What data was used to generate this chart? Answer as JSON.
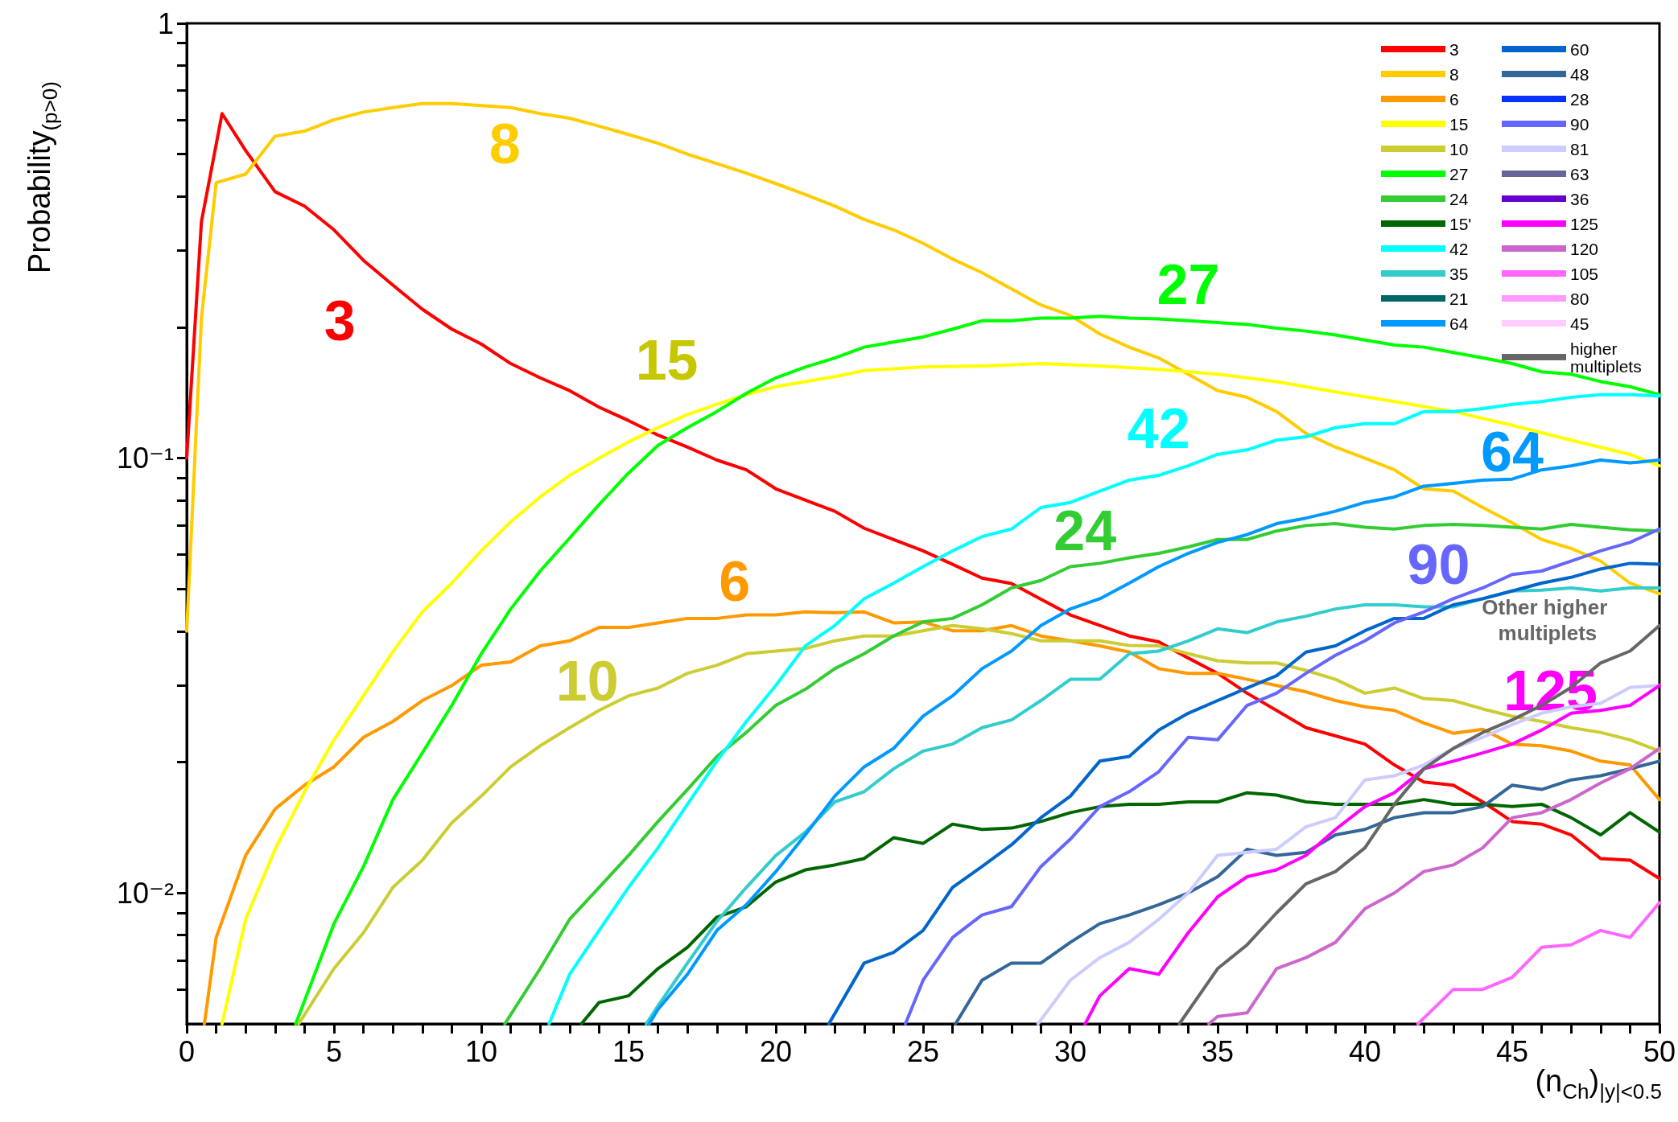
{
  "chart_data": {
    "type": "line",
    "ylabel": "Probability$_{(p>0)}$",
    "xlabel": "(n$_{Ch}$)$_{|y|<0.5}$",
    "log": "y",
    "legend": "top right",
    "line_style": "solid",
    "marker": "none",
    "xlim": [
      0,
      50
    ],
    "ylim": [
      0.005,
      1
    ],
    "xticks": [
      0,
      {
        "value": 1,
        "label": null
      },
      {
        "value": 2,
        "label": null
      },
      {
        "value": 3,
        "label": null
      },
      {
        "value": 4,
        "label": null
      },
      5,
      {
        "value": 6,
        "label": null
      },
      {
        "value": 7,
        "label": null
      },
      {
        "value": 8,
        "label": null
      },
      {
        "value": 9,
        "label": null
      },
      10,
      {
        "value": 11,
        "label": null
      },
      {
        "value": 12,
        "label": null
      },
      {
        "value": 13,
        "label": null
      },
      {
        "value": 14,
        "label": null
      },
      15,
      {
        "value": 16,
        "label": null
      },
      {
        "value": 17,
        "label": null
      },
      {
        "value": 18,
        "label": null
      },
      {
        "value": 19,
        "label": null
      },
      20,
      {
        "value": 21,
        "label": null
      },
      {
        "value": 22,
        "label": null
      },
      {
        "value": 23,
        "label": null
      },
      {
        "value": 24,
        "label": null
      },
      25,
      {
        "value": 26,
        "label": null
      },
      {
        "value": 27,
        "label": null
      },
      {
        "value": 28,
        "label": null
      },
      {
        "value": 29,
        "label": null
      },
      30,
      {
        "value": 31,
        "label": null
      },
      {
        "value": 32,
        "label": null
      },
      {
        "value": 33,
        "label": null
      },
      {
        "value": 34,
        "label": null
      },
      35,
      {
        "value": 36,
        "label": null
      },
      {
        "value": 37,
        "label": null
      },
      {
        "value": 38,
        "label": null
      },
      {
        "value": 39,
        "label": null
      },
      40,
      {
        "value": 41,
        "label": null
      },
      {
        "value": 42,
        "label": null
      },
      {
        "value": 43,
        "label": null
      },
      {
        "value": 44,
        "label": null
      },
      45,
      {
        "value": 46,
        "label": null
      },
      {
        "value": 47,
        "label": null
      },
      {
        "value": 48,
        "label": null
      },
      {
        "value": 49,
        "label": null
      },
      50
    ],
    "yticks": [
      {
        "value": 0.006,
        "label": null
      },
      {
        "value": 0.007,
        "label": null
      },
      {
        "value": 0.008,
        "label": null
      },
      {
        "value": 0.009,
        "label": null
      },
      {
        "value": 0.01,
        "label": "10⁻²"
      },
      {
        "value": 0.02,
        "label": null
      },
      {
        "value": 0.03,
        "label": null
      },
      {
        "value": 0.04,
        "label": null
      },
      {
        "value": 0.05,
        "label": null
      },
      {
        "value": 0.06,
        "label": null
      },
      {
        "value": 0.07,
        "label": null
      },
      {
        "value": 0.08,
        "label": null
      },
      {
        "value": 0.09,
        "label": null
      },
      {
        "value": 0.1,
        "label": "10⁻¹"
      },
      {
        "value": 0.2,
        "label": null
      },
      {
        "value": 0.3,
        "label": null
      },
      {
        "value": 0.4,
        "label": null
      },
      {
        "value": 0.5,
        "label": null
      },
      {
        "value": 0.6,
        "label": null
      },
      {
        "value": 0.7,
        "label": null
      },
      {
        "value": 0.8,
        "label": null
      },
      {
        "value": 0.9,
        "label": null
      },
      1
    ],
    "annotations": [
      "3",
      "8",
      "15",
      "27",
      "42",
      "64",
      "24",
      "6",
      "90",
      "10",
      "125",
      "Other higher multiplets"
    ],
    "series": [
      {
        "name": "3",
        "color": "#ff0000",
        "x": [
          0,
          0.5,
          1.2,
          2,
          3,
          4,
          5,
          6,
          7,
          8,
          9,
          10,
          11,
          12,
          13,
          14,
          15,
          16,
          17,
          18,
          19,
          20,
          22,
          23,
          24,
          25,
          26,
          27,
          28,
          30,
          32,
          33,
          34,
          35,
          36,
          38,
          40,
          41,
          42,
          43,
          44,
          45,
          46,
          47,
          48,
          49,
          50
        ],
        "values": [
          0.1,
          0.35,
          0.62,
          0.51,
          0.41,
          0.38,
          0.335,
          0.285,
          0.25,
          0.22,
          0.198,
          0.183,
          0.165,
          0.153,
          0.143,
          0.131,
          0.122,
          0.113,
          0.106,
          0.099,
          0.094,
          0.085,
          0.0755,
          0.069,
          0.065,
          0.0612,
          0.057,
          0.053,
          0.0515,
          0.0436,
          0.039,
          0.0378,
          0.0347,
          0.032,
          0.0288,
          0.024,
          0.022,
          0.0197,
          0.018,
          0.0177,
          0.0162,
          0.0146,
          0.0144,
          0.0136,
          0.012,
          0.0119,
          0.0108
        ]
      },
      {
        "name": "8",
        "color": "#ffcc00",
        "x": [
          0,
          0.5,
          1,
          2,
          3,
          4,
          5,
          6,
          7,
          8,
          9,
          10,
          11,
          12,
          13,
          14,
          15,
          16,
          17,
          18,
          19,
          20,
          21,
          22,
          23,
          24,
          25,
          26,
          27,
          28,
          29,
          30,
          31,
          32,
          33,
          34,
          35,
          36,
          37,
          38,
          39,
          40,
          41,
          42,
          43,
          44,
          45,
          46,
          47,
          48,
          49,
          50
        ],
        "values": [
          0.04,
          0.21,
          0.43,
          0.45,
          0.55,
          0.565,
          0.6,
          0.625,
          0.64,
          0.654,
          0.654,
          0.647,
          0.64,
          0.62,
          0.605,
          0.58,
          0.555,
          0.53,
          0.5,
          0.476,
          0.452,
          0.428,
          0.404,
          0.38,
          0.354,
          0.335,
          0.312,
          0.287,
          0.267,
          0.245,
          0.225,
          0.213,
          0.193,
          0.18,
          0.17,
          0.156,
          0.143,
          0.138,
          0.128,
          0.114,
          0.106,
          0.1,
          0.094,
          0.085,
          0.084,
          0.077,
          0.071,
          0.065,
          0.062,
          0.058,
          0.0516,
          0.0488
        ]
      },
      {
        "name": "6",
        "color": "#ff9900",
        "x": [
          0.6,
          1,
          2,
          3,
          4,
          5,
          6,
          7,
          8,
          9,
          10,
          11,
          12,
          13,
          14,
          15,
          16,
          17,
          18,
          19,
          20,
          21,
          22,
          23,
          24,
          25,
          26,
          27,
          28,
          29,
          30,
          31,
          32,
          33,
          34,
          35,
          36,
          37,
          38,
          39,
          40,
          41,
          42,
          43,
          44,
          45,
          46,
          47,
          48,
          49,
          50
        ],
        "values": [
          0.005,
          0.0079,
          0.0122,
          0.0156,
          0.0177,
          0.0195,
          0.0228,
          0.0248,
          0.0277,
          0.03,
          0.0334,
          0.034,
          0.037,
          0.038,
          0.0408,
          0.0408,
          0.0418,
          0.0428,
          0.0428,
          0.0436,
          0.0436,
          0.0443,
          0.0441,
          0.0443,
          0.0418,
          0.042,
          0.0401,
          0.0401,
          0.0412,
          0.039,
          0.038,
          0.037,
          0.0358,
          0.0328,
          0.032,
          0.032,
          0.031,
          0.03,
          0.029,
          0.0277,
          0.0268,
          0.0263,
          0.0246,
          0.0233,
          0.0238,
          0.022,
          0.0218,
          0.0212,
          0.0201,
          0.0197,
          0.0164
        ]
      },
      {
        "name": "15",
        "color": "#ffff00",
        "x": [
          1.2,
          2,
          3,
          4,
          5,
          6,
          7,
          8,
          9,
          10,
          11,
          12,
          13,
          14,
          15,
          16,
          17,
          18,
          19,
          20,
          21,
          22,
          23,
          25,
          27,
          29,
          30,
          31,
          33,
          35,
          37,
          39,
          41,
          43,
          45,
          47,
          49,
          50
        ],
        "values": [
          0.005,
          0.0087,
          0.0126,
          0.0171,
          0.0225,
          0.0284,
          0.0359,
          0.0443,
          0.0516,
          0.0612,
          0.0714,
          0.0814,
          0.0913,
          0.1,
          0.109,
          0.1175,
          0.126,
          0.133,
          0.14,
          0.146,
          0.15,
          0.154,
          0.159,
          0.162,
          0.163,
          0.165,
          0.164,
          0.163,
          0.16,
          0.156,
          0.15,
          0.142,
          0.135,
          0.128,
          0.119,
          0.11,
          0.102,
          0.096
        ]
      },
      {
        "name": "10",
        "color": "#cccc33",
        "x": [
          3.8,
          5,
          6,
          7,
          8,
          9,
          10,
          11,
          12,
          13,
          14,
          15,
          16,
          17,
          18,
          19,
          20,
          21,
          22,
          23,
          24,
          25,
          26,
          27,
          28,
          29,
          30,
          31,
          32,
          33,
          34,
          35,
          36,
          37,
          38,
          39,
          40,
          41,
          42,
          43,
          44,
          45,
          46,
          47,
          48,
          49,
          50
        ],
        "values": [
          0.005,
          0.0067,
          0.0081,
          0.0103,
          0.0119,
          0.0145,
          0.0167,
          0.0195,
          0.0218,
          0.024,
          0.0263,
          0.0284,
          0.0296,
          0.032,
          0.0334,
          0.0355,
          0.036,
          0.0365,
          0.038,
          0.039,
          0.039,
          0.0401,
          0.0412,
          0.0405,
          0.0395,
          0.038,
          0.038,
          0.038,
          0.0371,
          0.037,
          0.0355,
          0.0342,
          0.0338,
          0.0338,
          0.0325,
          0.031,
          0.0288,
          0.0296,
          0.028,
          0.0277,
          0.0265,
          0.0255,
          0.0248,
          0.024,
          0.0234,
          0.0225,
          0.0212
        ]
      },
      {
        "name": "27",
        "color": "#00ff00",
        "x": [
          3.7,
          5,
          6,
          7,
          8,
          9,
          10,
          11,
          12,
          13,
          14,
          15,
          16,
          17,
          18,
          19,
          20,
          21,
          22,
          23,
          24,
          25,
          26,
          27,
          28,
          29,
          30,
          31,
          32,
          33,
          34,
          35,
          36,
          37,
          38,
          39,
          40,
          41,
          42,
          43,
          44,
          45,
          46,
          47,
          48,
          49,
          50
        ],
        "values": [
          0.005,
          0.0085,
          0.0115,
          0.0164,
          0.021,
          0.027,
          0.0355,
          0.045,
          0.055,
          0.0655,
          0.0782,
          0.0924,
          0.107,
          0.1175,
          0.128,
          0.141,
          0.153,
          0.162,
          0.17,
          0.18,
          0.185,
          0.19,
          0.198,
          0.207,
          0.207,
          0.21,
          0.21,
          0.212,
          0.21,
          0.209,
          0.207,
          0.205,
          0.203,
          0.199,
          0.196,
          0.192,
          0.187,
          0.182,
          0.18,
          0.175,
          0.17,
          0.165,
          0.158,
          0.156,
          0.15,
          0.146,
          0.14
        ]
      },
      {
        "name": "24",
        "color": "#33cc33",
        "x": [
          10.8,
          12,
          13,
          14,
          15,
          16,
          17,
          18,
          19,
          20,
          21,
          22,
          23,
          24,
          25,
          26,
          27,
          28,
          29,
          30,
          31,
          32,
          33,
          34,
          35,
          36,
          37,
          38,
          39,
          40,
          41,
          42,
          43,
          44,
          45,
          46,
          47,
          48,
          49,
          50
        ],
        "values": [
          0.005,
          0.0067,
          0.0087,
          0.0103,
          0.0122,
          0.0146,
          0.0173,
          0.0206,
          0.0234,
          0.027,
          0.0294,
          0.0328,
          0.0355,
          0.039,
          0.042,
          0.0428,
          0.046,
          0.0503,
          0.0523,
          0.0563,
          0.0573,
          0.059,
          0.0604,
          0.0625,
          0.065,
          0.065,
          0.068,
          0.07,
          0.0707,
          0.0694,
          0.0687,
          0.07,
          0.0704,
          0.07,
          0.0694,
          0.0687,
          0.0704,
          0.0694,
          0.0684,
          0.068
        ]
      },
      {
        "name": "15'",
        "color": "#006600",
        "x": [
          13.4,
          14,
          15,
          16,
          17,
          18,
          19,
          20,
          21,
          22,
          23,
          24,
          25,
          26,
          27,
          28,
          29,
          30,
          31,
          32,
          33,
          34,
          35,
          36,
          37,
          38,
          39,
          40,
          41,
          42,
          43,
          44,
          45,
          46,
          47,
          48,
          49,
          50
        ],
        "values": [
          0.005,
          0.0056,
          0.0058,
          0.0067,
          0.0075,
          0.0088,
          0.0093,
          0.0106,
          0.0113,
          0.0116,
          0.012,
          0.0134,
          0.013,
          0.0144,
          0.014,
          0.0141,
          0.0146,
          0.0153,
          0.0158,
          0.016,
          0.016,
          0.0162,
          0.0162,
          0.017,
          0.0168,
          0.0162,
          0.016,
          0.016,
          0.016,
          0.0164,
          0.016,
          0.016,
          0.0158,
          0.016,
          0.0149,
          0.0136,
          0.0153,
          0.0138
        ]
      },
      {
        "name": "42",
        "color": "#00ffff",
        "x": [
          12.3,
          13,
          14,
          15,
          16,
          17,
          18,
          19,
          20,
          21,
          22,
          23,
          24,
          25,
          26,
          27,
          28,
          29,
          30,
          31,
          32,
          33,
          34,
          35,
          36,
          37,
          38,
          39,
          40,
          41,
          42,
          43,
          44,
          45,
          46,
          47,
          48,
          49,
          50
        ],
        "values": [
          0.005,
          0.0065,
          0.0082,
          0.0103,
          0.0127,
          0.016,
          0.0201,
          0.0248,
          0.03,
          0.037,
          0.0412,
          0.0475,
          0.0516,
          0.0563,
          0.0612,
          0.066,
          0.0687,
          0.077,
          0.0791,
          0.084,
          0.089,
          0.0913,
          0.096,
          0.102,
          0.1045,
          0.11,
          0.112,
          0.1175,
          0.12,
          0.12,
          0.128,
          0.128,
          0.13,
          0.133,
          0.135,
          0.138,
          0.14,
          0.14,
          0.139
        ]
      },
      {
        "name": "35",
        "color": "#33cccc",
        "x": [
          15.6,
          16,
          17,
          18,
          19,
          20,
          21,
          22,
          23,
          24,
          25,
          26,
          27,
          28,
          29,
          30,
          31,
          32,
          33,
          34,
          35,
          36,
          37,
          38,
          39,
          40,
          41,
          42,
          43,
          44,
          45,
          46,
          47,
          48,
          49,
          50
        ],
        "values": [
          0.005,
          0.0055,
          0.0069,
          0.0086,
          0.0103,
          0.0122,
          0.0138,
          0.0162,
          0.0171,
          0.0193,
          0.0212,
          0.022,
          0.024,
          0.025,
          0.0277,
          0.031,
          0.031,
          0.0355,
          0.036,
          0.038,
          0.0405,
          0.0397,
          0.042,
          0.0433,
          0.045,
          0.046,
          0.046,
          0.0455,
          0.0455,
          0.0475,
          0.0495,
          0.0497,
          0.0503,
          0.0495,
          0.0503,
          0.0503
        ]
      },
      {
        "name": "21",
        "color": "#006666"
      },
      {
        "name": "64",
        "color": "#0099ff",
        "x": [
          15.7,
          16,
          17,
          18,
          19,
          20,
          21,
          22,
          23,
          24,
          25,
          26,
          27,
          28,
          29,
          30,
          31,
          32,
          33,
          34,
          35,
          36,
          37,
          38,
          39,
          40,
          41,
          42,
          43,
          44,
          45,
          46,
          47,
          48,
          49,
          50
        ],
        "values": [
          0.005,
          0.0054,
          0.0065,
          0.0082,
          0.0094,
          0.0112,
          0.0136,
          0.0167,
          0.0195,
          0.0215,
          0.0255,
          0.0284,
          0.0328,
          0.036,
          0.0412,
          0.045,
          0.0475,
          0.0516,
          0.0563,
          0.0604,
          0.064,
          0.0667,
          0.0707,
          0.0728,
          0.0755,
          0.0791,
          0.0814,
          0.0862,
          0.0875,
          0.089,
          0.0895,
          0.094,
          0.096,
          0.099,
          0.0975,
          0.099
        ]
      },
      {
        "name": "60",
        "color": "#0066cc",
        "x": [
          21.8,
          23,
          24,
          25,
          26,
          27,
          28,
          29,
          30,
          31,
          32,
          33,
          34,
          35,
          36,
          37,
          38,
          39,
          40,
          41,
          42,
          43,
          44,
          45,
          46,
          47,
          48,
          49,
          50
        ],
        "values": [
          0.005,
          0.0069,
          0.0073,
          0.0082,
          0.0103,
          0.0115,
          0.0129,
          0.0149,
          0.0167,
          0.0201,
          0.0206,
          0.0237,
          0.0259,
          0.0277,
          0.0296,
          0.0316,
          0.0358,
          0.037,
          0.0401,
          0.0428,
          0.0428,
          0.046,
          0.0475,
          0.0495,
          0.0516,
          0.0532,
          0.0556,
          0.0573,
          0.057
        ]
      },
      {
        "name": "48",
        "color": "#336699",
        "x": [
          26.1,
          27,
          28,
          29,
          30,
          31,
          32,
          33,
          34,
          35,
          36,
          37,
          38,
          39,
          40,
          41,
          42,
          43,
          44,
          45,
          46,
          47,
          48,
          49,
          50
        ],
        "values": [
          0.005,
          0.0063,
          0.0069,
          0.0069,
          0.0077,
          0.0085,
          0.0089,
          0.0094,
          0.01,
          0.0109,
          0.0126,
          0.0122,
          0.0124,
          0.0136,
          0.014,
          0.0149,
          0.0153,
          0.0153,
          0.0158,
          0.0177,
          0.0173,
          0.0182,
          0.0186,
          0.0193,
          0.0201
        ]
      },
      {
        "name": "28",
        "color": "#0033ff"
      },
      {
        "name": "90",
        "color": "#6666ff",
        "x": [
          24.4,
          25,
          26,
          27,
          28,
          29,
          30,
          31,
          32,
          33,
          34,
          35,
          36,
          37,
          38,
          39,
          40,
          41,
          42,
          43,
          44,
          45,
          46,
          47,
          48,
          49,
          50
        ],
        "values": [
          0.005,
          0.0063,
          0.0079,
          0.0089,
          0.0093,
          0.0115,
          0.0133,
          0.0158,
          0.0171,
          0.019,
          0.0228,
          0.0225,
          0.027,
          0.0288,
          0.032,
          0.0352,
          0.038,
          0.0418,
          0.0443,
          0.0475,
          0.0503,
          0.054,
          0.055,
          0.058,
          0.0612,
          0.064,
          0.0687
        ]
      },
      {
        "name": "81",
        "color": "#ccccff",
        "x": [
          28.9,
          30,
          31,
          32,
          33,
          34,
          35,
          36,
          37,
          38,
          39,
          40,
          41,
          42,
          43,
          44,
          45,
          46,
          47,
          48,
          49,
          50
        ],
        "values": [
          0.005,
          0.0063,
          0.0071,
          0.0077,
          0.0087,
          0.01,
          0.0122,
          0.0124,
          0.0126,
          0.0142,
          0.0149,
          0.0182,
          0.0186,
          0.0197,
          0.0215,
          0.0228,
          0.0244,
          0.0259,
          0.0268,
          0.0273,
          0.0297,
          0.03
        ]
      },
      {
        "name": "63",
        "color": "#666699"
      },
      {
        "name": "36",
        "color": "#6600cc"
      },
      {
        "name": "125",
        "color": "#ff00ff",
        "x": [
          30.5,
          31,
          32,
          33,
          34,
          35,
          36,
          37,
          38,
          39,
          40,
          41,
          42,
          43,
          44,
          45,
          46,
          47,
          48,
          49,
          50
        ],
        "values": [
          0.005,
          0.0058,
          0.0067,
          0.0065,
          0.0081,
          0.0098,
          0.0109,
          0.0113,
          0.0122,
          0.014,
          0.0158,
          0.017,
          0.0193,
          0.0201,
          0.021,
          0.022,
          0.0237,
          0.0259,
          0.0263,
          0.027,
          0.03
        ]
      },
      {
        "name": "120",
        "color": "#cc66cc",
        "x": [
          34.7,
          35,
          36,
          37,
          38,
          39,
          40,
          41,
          42,
          43,
          44,
          45,
          46,
          47,
          48,
          49,
          50
        ],
        "values": [
          0.005,
          0.0052,
          0.0053,
          0.0067,
          0.0071,
          0.0077,
          0.0092,
          0.01,
          0.0112,
          0.0116,
          0.0127,
          0.0149,
          0.0153,
          0.0164,
          0.0179,
          0.0193,
          0.0215
        ]
      },
      {
        "name": "105",
        "color": "#ff66ff",
        "x": [
          41.8,
          43,
          44,
          45,
          46,
          47,
          48,
          49,
          50
        ],
        "values": [
          0.005,
          0.006,
          0.006,
          0.0064,
          0.0075,
          0.0076,
          0.0082,
          0.0079,
          0.0095
        ]
      },
      {
        "name": "80",
        "color": "#ff99ff"
      },
      {
        "name": "45",
        "color": "#ffccff"
      },
      {
        "name": "higher multiplets",
        "color": "#666666",
        "x": [
          33.7,
          35,
          36,
          37,
          38,
          39,
          40,
          41,
          42,
          43,
          44,
          45,
          46,
          47,
          48,
          49,
          50
        ],
        "values": [
          0.005,
          0.0067,
          0.0076,
          0.009,
          0.0105,
          0.0112,
          0.0127,
          0.016,
          0.0193,
          0.0215,
          0.0234,
          0.025,
          0.027,
          0.0297,
          0.0338,
          0.036,
          0.0412
        ]
      }
    ]
  }
}
